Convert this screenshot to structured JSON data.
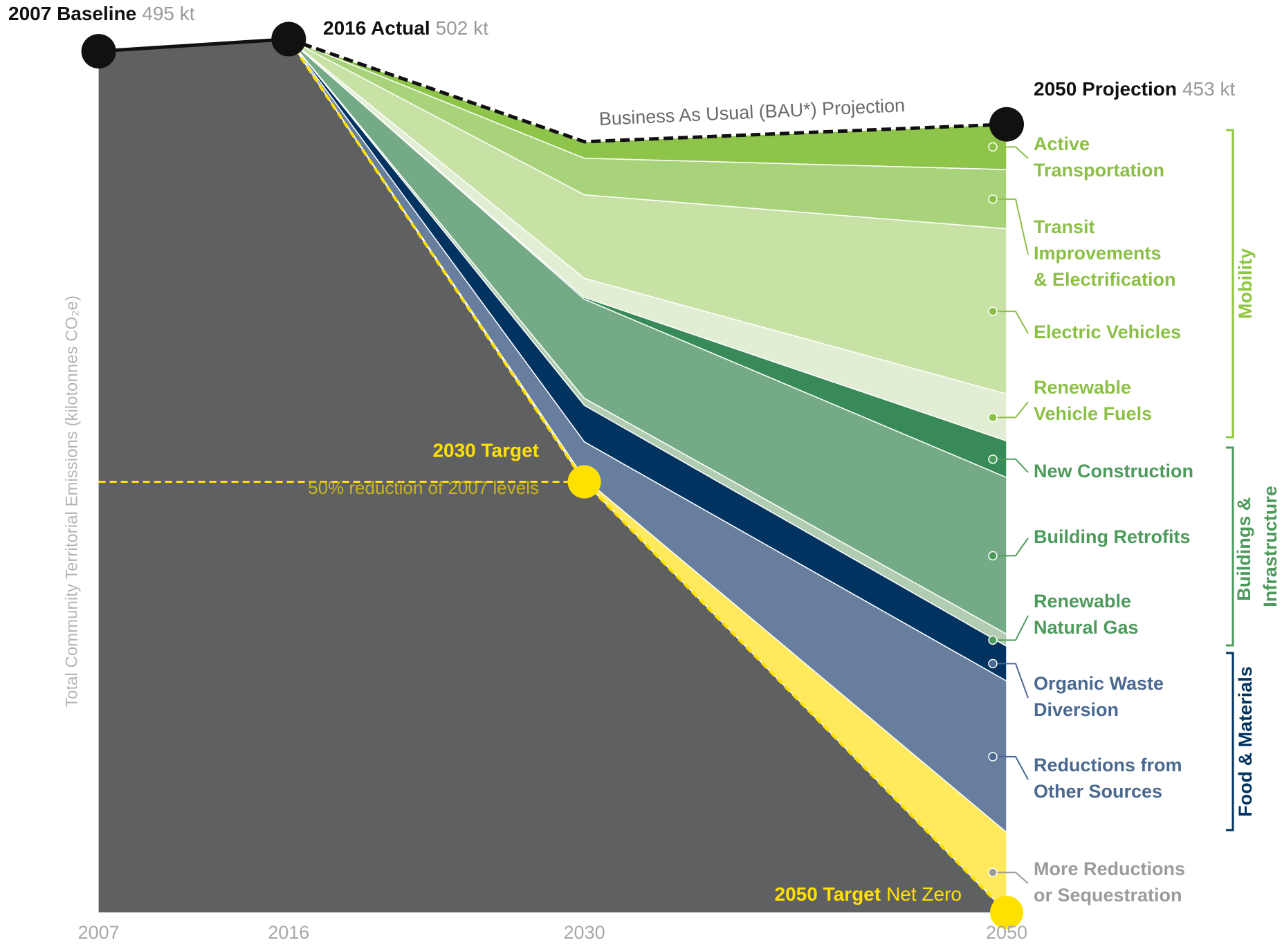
{
  "chart_data": {
    "type": "stacked_area",
    "y_label": "Total Community Territorial Emissions (kilotonnes CO₂e)",
    "x": [
      2007,
      2016,
      2030,
      2050
    ],
    "xlim": [
      2007,
      2050
    ],
    "xticks": [
      2007,
      2016,
      2030,
      2050
    ],
    "ylim": [
      0,
      500
    ],
    "pathway": {
      "color": "#5f6062",
      "values": [
        495,
        502,
        247.5,
        0
      ]
    },
    "series": [
      {
        "name": "More Reductions or Sequestration",
        "color": "#ffea5e",
        "label_color": "#9b9b9b",
        "values": [
          null,
          0,
          2,
          46
        ]
      },
      {
        "name": "Reductions from Other Sources",
        "color": "#687e9f",
        "label_color": "#4a6890",
        "values": [
          null,
          0,
          21,
          87
        ]
      },
      {
        "name": "Organic Waste Diversion",
        "color": "#00335f",
        "label_color": "#4a6890",
        "values": [
          null,
          0,
          21,
          20
        ]
      },
      {
        "name": "Renewable Natural Gas",
        "color": "#b2ccb2",
        "label_color": "#4e9a5c",
        "values": [
          null,
          0,
          4,
          7
        ]
      },
      {
        "name": "Building Retrofits",
        "color": "#74aa86",
        "label_color": "#4e9a5c",
        "values": [
          null,
          0,
          57,
          90
        ]
      },
      {
        "name": "New Construction",
        "color": "#388a58",
        "label_color": "#4e9a5c",
        "values": [
          null,
          0,
          1,
          21
        ]
      },
      {
        "name": "Renewable Vehicle Fuels",
        "color": "#e2eed3",
        "label_color": "#8cbf47",
        "values": [
          null,
          0,
          11,
          27
        ]
      },
      {
        "name": "Electric Vehicles",
        "color": "#c8e1a5",
        "label_color": "#8cbf47",
        "values": [
          null,
          0,
          48,
          95
        ]
      },
      {
        "name": "Transit Improvements & Electrification",
        "color": "#a9d37b",
        "label_color": "#8cbf47",
        "values": [
          null,
          0,
          21,
          34
        ]
      },
      {
        "name": "Active Transportation",
        "color": "#8dc449",
        "label_color": "#8cbf47",
        "values": [
          null,
          0,
          9.5,
          26
        ]
      }
    ],
    "bau": {
      "name": "Business As Usual (BAU*) Projection",
      "color": "#111111",
      "values": [
        null,
        502,
        443,
        453
      ]
    },
    "target": {
      "color": "#ffe100",
      "values": [
        null,
        null,
        247.5,
        0
      ]
    },
    "annotations": [
      {
        "text": "2007 Baseline",
        "note": "495 kt"
      },
      {
        "text": "2016 Actual",
        "note": "502 kt"
      },
      {
        "text": "2050 Projection",
        "note": "453 kt"
      },
      {
        "text": "2030 Target",
        "note": "50% reduction of 2007 levels"
      },
      {
        "text": "2050 Target",
        "note": "Net Zero"
      }
    ],
    "groups": [
      {
        "name": "Mobility",
        "color": "#8dc63f"
      },
      {
        "name": "Buildings & Infrastructure",
        "color": "#4e9a5c"
      },
      {
        "name": "Food & Materials",
        "color": "#00335f"
      }
    ]
  }
}
